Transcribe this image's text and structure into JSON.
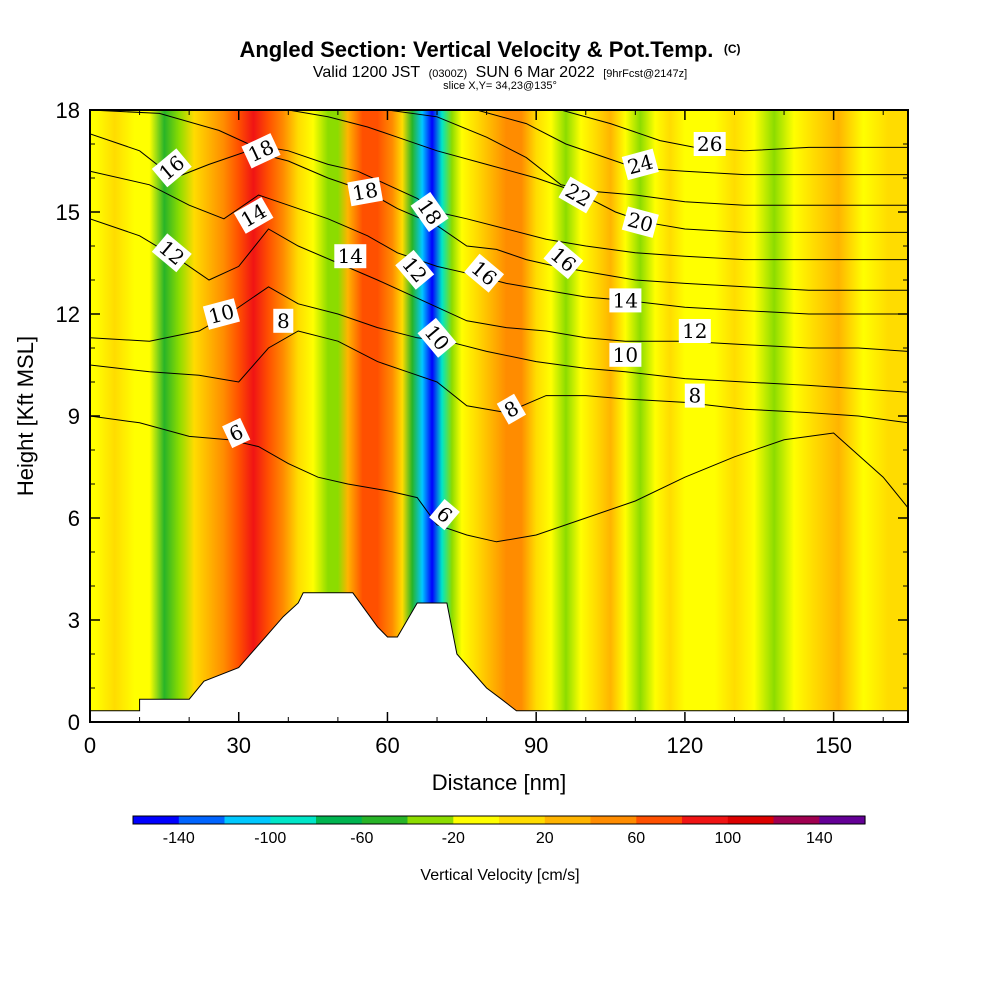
{
  "chart_data": {
    "type": "heatmap",
    "title": "Angled Section: Vertical Velocity & Pot.Temp.",
    "title_mark": "(C)",
    "subtitle_parts": [
      "Valid 1200 JST",
      "(0300Z)",
      "SUN 6 Mar 2022",
      "[9hrFcst@2147z]"
    ],
    "slice_text": "slice X,Y= 34,23@135°",
    "xlabel": "Distance [nm]",
    "ylabel": "Height [Kft MSL]",
    "xlim": [
      0,
      165
    ],
    "ylim": [
      0,
      18
    ],
    "xticks": [
      0,
      30,
      60,
      90,
      120,
      150
    ],
    "yticks": [
      0,
      3,
      6,
      9,
      12,
      15,
      18
    ],
    "colorbar": {
      "label": "Vertical Velocity [cm/s]",
      "ticks": [
        -140,
        -100,
        -60,
        -20,
        20,
        60,
        100,
        140
      ],
      "bins": [
        -160,
        -140,
        -120,
        -100,
        -80,
        -60,
        -40,
        -20,
        0,
        20,
        40,
        60,
        80,
        100,
        120,
        140,
        160
      ],
      "colors": [
        "#0000ff",
        "#0064ff",
        "#00c8ff",
        "#00e6c8",
        "#00b450",
        "#28b428",
        "#8cdc00",
        "#ffff00",
        "#ffdc00",
        "#ffb400",
        "#ff8c00",
        "#ff5000",
        "#f01414",
        "#dc0000",
        "#a00050",
        "#640096"
      ]
    },
    "velocity_columns": [
      {
        "x": 1,
        "w": -5
      },
      {
        "x": 5,
        "w": 5
      },
      {
        "x": 9,
        "w": -10
      },
      {
        "x": 12,
        "w": -20
      },
      {
        "x": 15,
        "w": -45
      },
      {
        "x": 18,
        "w": -30
      },
      {
        "x": 21,
        "w": 10
      },
      {
        "x": 24,
        "w": 30
      },
      {
        "x": 27,
        "w": 50
      },
      {
        "x": 30,
        "w": 70
      },
      {
        "x": 33,
        "w": 80
      },
      {
        "x": 36,
        "w": 75
      },
      {
        "x": 39,
        "w": 40
      },
      {
        "x": 42,
        "w": 10
      },
      {
        "x": 45,
        "w": -10
      },
      {
        "x": 48,
        "w": -35
      },
      {
        "x": 50,
        "w": -25
      },
      {
        "x": 52,
        "w": 20
      },
      {
        "x": 55,
        "w": 60
      },
      {
        "x": 58,
        "w": 70
      },
      {
        "x": 61,
        "w": 45
      },
      {
        "x": 63,
        "w": 10
      },
      {
        "x": 65,
        "w": -50
      },
      {
        "x": 67,
        "w": -115
      },
      {
        "x": 69,
        "w": -145
      },
      {
        "x": 71,
        "w": -90
      },
      {
        "x": 73,
        "w": -40
      },
      {
        "x": 75,
        "w": -10
      },
      {
        "x": 78,
        "w": 10
      },
      {
        "x": 81,
        "w": 30
      },
      {
        "x": 84,
        "w": 50
      },
      {
        "x": 87,
        "w": 40
      },
      {
        "x": 90,
        "w": 15
      },
      {
        "x": 93,
        "w": -10
      },
      {
        "x": 96,
        "w": -25
      },
      {
        "x": 99,
        "w": -5
      },
      {
        "x": 102,
        "w": 15
      },
      {
        "x": 105,
        "w": 25
      },
      {
        "x": 108,
        "w": -15
      },
      {
        "x": 111,
        "w": -30
      },
      {
        "x": 114,
        "w": -10
      },
      {
        "x": 117,
        "w": 10
      },
      {
        "x": 120,
        "w": -5
      },
      {
        "x": 123,
        "w": -20
      },
      {
        "x": 126,
        "w": -10
      },
      {
        "x": 130,
        "w": 5
      },
      {
        "x": 134,
        "w": -10
      },
      {
        "x": 138,
        "w": -30
      },
      {
        "x": 142,
        "w": -15
      },
      {
        "x": 146,
        "w": 5
      },
      {
        "x": 151,
        "w": 20
      },
      {
        "x": 156,
        "w": -10
      },
      {
        "x": 161,
        "w": 5
      },
      {
        "x": 165,
        "w": 15
      }
    ],
    "terrain": [
      [
        0,
        0.33
      ],
      [
        10,
        0.33
      ],
      [
        10,
        0.67
      ],
      [
        20,
        0.67
      ],
      [
        23,
        1.2
      ],
      [
        30,
        1.6
      ],
      [
        33,
        2.1
      ],
      [
        36,
        2.6
      ],
      [
        39,
        3.1
      ],
      [
        42,
        3.5
      ],
      [
        43,
        3.8
      ],
      [
        53,
        3.8
      ],
      [
        56,
        3.2
      ],
      [
        58,
        2.8
      ],
      [
        60,
        2.5
      ],
      [
        62,
        2.5
      ],
      [
        64,
        3.0
      ],
      [
        66,
        3.5
      ],
      [
        72,
        3.5
      ],
      [
        74,
        2.0
      ],
      [
        77,
        1.5
      ],
      [
        80,
        1.0
      ],
      [
        83,
        0.67
      ],
      [
        86,
        0.33
      ],
      [
        165,
        0.33
      ]
    ],
    "isentropes": [
      {
        "label": "6",
        "points": [
          [
            0,
            9.0
          ],
          [
            10,
            8.8
          ],
          [
            20,
            8.4
          ],
          [
            28,
            8.3
          ],
          [
            34,
            8.1
          ],
          [
            40,
            7.6
          ],
          [
            46,
            7.2
          ],
          [
            52,
            7.0
          ],
          [
            60,
            6.8
          ],
          [
            66,
            6.6
          ],
          [
            70,
            5.8
          ],
          [
            76,
            5.5
          ],
          [
            82,
            5.3
          ],
          [
            90,
            5.5
          ],
          [
            100,
            6.0
          ],
          [
            110,
            6.5
          ],
          [
            120,
            7.2
          ],
          [
            130,
            7.8
          ],
          [
            140,
            8.3
          ],
          [
            150,
            8.5
          ],
          [
            160,
            7.2
          ],
          [
            165,
            6.3
          ]
        ]
      },
      {
        "label": "8",
        "points": [
          [
            0,
            10.5
          ],
          [
            12,
            10.3
          ],
          [
            22,
            10.2
          ],
          [
            30,
            10.0
          ],
          [
            36,
            11.0
          ],
          [
            42,
            11.5
          ],
          [
            50,
            11.2
          ],
          [
            58,
            10.6
          ],
          [
            64,
            10.3
          ],
          [
            70,
            10.0
          ],
          [
            76,
            9.3
          ],
          [
            84,
            9.1
          ],
          [
            92,
            9.6
          ],
          [
            100,
            9.6
          ],
          [
            108,
            9.5
          ],
          [
            120,
            9.4
          ],
          [
            132,
            9.2
          ],
          [
            145,
            9.1
          ],
          [
            155,
            9.0
          ],
          [
            165,
            8.8
          ]
        ]
      },
      {
        "label": "10",
        "points": [
          [
            0,
            11.3
          ],
          [
            12,
            11.2
          ],
          [
            22,
            11.5
          ],
          [
            28,
            12.0
          ],
          [
            36,
            12.8
          ],
          [
            42,
            12.3
          ],
          [
            50,
            12.0
          ],
          [
            58,
            11.6
          ],
          [
            66,
            11.3
          ],
          [
            72,
            11.2
          ],
          [
            80,
            10.9
          ],
          [
            90,
            10.6
          ],
          [
            100,
            10.4
          ],
          [
            108,
            10.3
          ],
          [
            120,
            10.1
          ],
          [
            132,
            10.0
          ],
          [
            145,
            9.9
          ],
          [
            155,
            9.8
          ],
          [
            165,
            9.7
          ]
        ]
      },
      {
        "label": "12",
        "points": [
          [
            0,
            14.8
          ],
          [
            10,
            14.3
          ],
          [
            18,
            13.6
          ],
          [
            24,
            13.0
          ],
          [
            30,
            13.4
          ],
          [
            36,
            14.5
          ],
          [
            42,
            14.0
          ],
          [
            50,
            13.5
          ],
          [
            58,
            13.0
          ],
          [
            64,
            12.6
          ],
          [
            70,
            12.2
          ],
          [
            76,
            11.8
          ],
          [
            84,
            11.6
          ],
          [
            92,
            11.5
          ],
          [
            100,
            11.3
          ],
          [
            108,
            11.2
          ],
          [
            120,
            11.2
          ],
          [
            132,
            11.1
          ],
          [
            145,
            11.0
          ],
          [
            155,
            11.0
          ],
          [
            165,
            10.9
          ]
        ]
      },
      {
        "label": "14",
        "points": [
          [
            0,
            16.2
          ],
          [
            12,
            15.8
          ],
          [
            20,
            15.2
          ],
          [
            27,
            14.8
          ],
          [
            34,
            15.5
          ],
          [
            40,
            15.2
          ],
          [
            48,
            14.8
          ],
          [
            56,
            14.3
          ],
          [
            62,
            13.8
          ],
          [
            70,
            13.4
          ],
          [
            76,
            13.2
          ],
          [
            84,
            12.9
          ],
          [
            92,
            12.7
          ],
          [
            100,
            12.5
          ],
          [
            108,
            12.4
          ],
          [
            120,
            12.2
          ],
          [
            132,
            12.1
          ],
          [
            145,
            12.0
          ],
          [
            155,
            12.0
          ],
          [
            165,
            12.0
          ]
        ]
      },
      {
        "label": "16",
        "points": [
          [
            0,
            17.3
          ],
          [
            10,
            16.8
          ],
          [
            17,
            16.0
          ],
          [
            24,
            16.4
          ],
          [
            32,
            16.8
          ],
          [
            40,
            16.5
          ],
          [
            48,
            16.0
          ],
          [
            56,
            15.6
          ],
          [
            62,
            15.1
          ],
          [
            70,
            14.6
          ],
          [
            76,
            14.0
          ],
          [
            82,
            13.9
          ],
          [
            88,
            13.6
          ],
          [
            94,
            13.4
          ],
          [
            102,
            13.2
          ],
          [
            110,
            13.0
          ],
          [
            120,
            12.9
          ],
          [
            132,
            12.8
          ],
          [
            145,
            12.7
          ],
          [
            155,
            12.7
          ],
          [
            165,
            12.7
          ]
        ]
      },
      {
        "label": "18",
        "points": [
          [
            0,
            18.0
          ],
          [
            14,
            17.9
          ],
          [
            26,
            17.4
          ],
          [
            32,
            17.0
          ],
          [
            40,
            16.8
          ],
          [
            48,
            16.4
          ],
          [
            54,
            16.2
          ],
          [
            60,
            15.8
          ],
          [
            66,
            15.4
          ],
          [
            70,
            15.0
          ],
          [
            76,
            14.8
          ],
          [
            84,
            14.5
          ],
          [
            92,
            14.2
          ],
          [
            100,
            14.0
          ],
          [
            110,
            13.8
          ],
          [
            120,
            13.7
          ],
          [
            132,
            13.6
          ],
          [
            145,
            13.6
          ],
          [
            155,
            13.6
          ],
          [
            165,
            13.6
          ]
        ]
      },
      {
        "label": "20",
        "points": [
          [
            40,
            18.0
          ],
          [
            48,
            17.8
          ],
          [
            56,
            17.5
          ],
          [
            62,
            17.2
          ],
          [
            70,
            16.8
          ],
          [
            80,
            16.4
          ],
          [
            90,
            16.0
          ],
          [
            98,
            15.6
          ],
          [
            106,
            15.0
          ],
          [
            112,
            14.7
          ],
          [
            120,
            14.5
          ],
          [
            132,
            14.4
          ],
          [
            145,
            14.4
          ],
          [
            155,
            14.4
          ],
          [
            165,
            14.4
          ]
        ]
      },
      {
        "label": "22",
        "points": [
          [
            60,
            18.0
          ],
          [
            70,
            17.8
          ],
          [
            80,
            17.2
          ],
          [
            88,
            16.6
          ],
          [
            95,
            15.8
          ],
          [
            102,
            15.6
          ],
          [
            110,
            15.5
          ],
          [
            120,
            15.3
          ],
          [
            132,
            15.2
          ],
          [
            145,
            15.2
          ],
          [
            155,
            15.2
          ],
          [
            165,
            15.2
          ]
        ]
      },
      {
        "label": "24",
        "points": [
          [
            78,
            18.0
          ],
          [
            88,
            17.6
          ],
          [
            96,
            17.0
          ],
          [
            104,
            16.6
          ],
          [
            110,
            16.3
          ],
          [
            120,
            16.2
          ],
          [
            132,
            16.1
          ],
          [
            145,
            16.1
          ],
          [
            155,
            16.1
          ],
          [
            165,
            16.1
          ]
        ]
      },
      {
        "label": "26",
        "points": [
          [
            95,
            18.0
          ],
          [
            105,
            17.6
          ],
          [
            115,
            17.1
          ],
          [
            122,
            16.9
          ],
          [
            132,
            16.8
          ],
          [
            145,
            16.9
          ],
          [
            155,
            16.9
          ],
          [
            165,
            16.9
          ]
        ]
      }
    ],
    "contour_labels": [
      {
        "text": "16",
        "x": 16.5,
        "y": 16.3,
        "angle": -40
      },
      {
        "text": "18",
        "x": 34.5,
        "y": 16.8,
        "angle": -25
      },
      {
        "text": "14",
        "x": 33,
        "y": 14.9,
        "angle": -30
      },
      {
        "text": "12",
        "x": 16.5,
        "y": 13.8,
        "angle": 40
      },
      {
        "text": "10",
        "x": 26.5,
        "y": 12.0,
        "angle": -15
      },
      {
        "text": "8",
        "x": 39,
        "y": 11.8,
        "angle": 0
      },
      {
        "text": "6",
        "x": 29.5,
        "y": 8.5,
        "angle": -25
      },
      {
        "text": "18",
        "x": 55.5,
        "y": 15.6,
        "angle": -10
      },
      {
        "text": "14",
        "x": 52.5,
        "y": 13.7,
        "angle": 0
      },
      {
        "text": "18",
        "x": 68.5,
        "y": 15.0,
        "angle": 55
      },
      {
        "text": "12",
        "x": 65.5,
        "y": 13.3,
        "angle": 50
      },
      {
        "text": "10",
        "x": 70,
        "y": 11.3,
        "angle": 50
      },
      {
        "text": "16",
        "x": 79.5,
        "y": 13.2,
        "angle": 40
      },
      {
        "text": "8",
        "x": 85,
        "y": 9.2,
        "angle": -30
      },
      {
        "text": "6",
        "x": 71.5,
        "y": 6.1,
        "angle": 40
      },
      {
        "text": "22",
        "x": 98.5,
        "y": 15.5,
        "angle": 30
      },
      {
        "text": "16",
        "x": 95.5,
        "y": 13.6,
        "angle": 40
      },
      {
        "text": "24",
        "x": 111,
        "y": 16.4,
        "angle": -15
      },
      {
        "text": "20",
        "x": 111,
        "y": 14.7,
        "angle": 15
      },
      {
        "text": "14",
        "x": 108,
        "y": 12.4,
        "angle": 0
      },
      {
        "text": "10",
        "x": 108,
        "y": 10.8,
        "angle": 0
      },
      {
        "text": "12",
        "x": 122,
        "y": 11.5,
        "angle": 0
      },
      {
        "text": "8",
        "x": 122,
        "y": 9.6,
        "angle": 0
      },
      {
        "text": "26",
        "x": 125,
        "y": 17.0,
        "angle": 0
      }
    ]
  }
}
